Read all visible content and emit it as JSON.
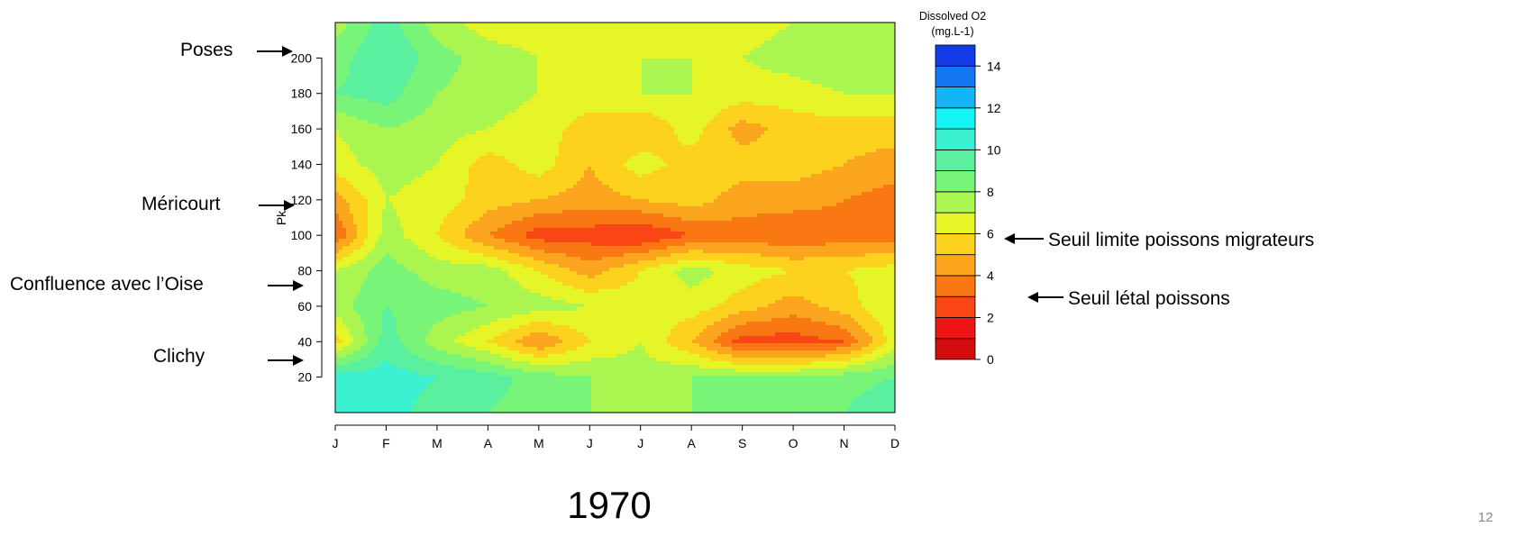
{
  "slide": {
    "year": "1970",
    "page_number": "12"
  },
  "annotations": {
    "left": [
      {
        "label": "Poses",
        "pk": 200
      },
      {
        "label": "Méricourt",
        "pk": 119
      },
      {
        "label": "Confluence avec l’Oise",
        "pk": 78
      },
      {
        "label": "Clichy",
        "pk": 38
      }
    ],
    "right": [
      {
        "label": "Seuil limite poissons migrateurs",
        "value": 6
      },
      {
        "label": "Seuil létal poissons",
        "value": 3
      }
    ]
  },
  "chart_data": {
    "type": "heatmap",
    "title": "",
    "xlabel": "",
    "ylabel": "Pk",
    "x": [
      "J",
      "F",
      "M",
      "A",
      "M",
      "J",
      "J",
      "A",
      "S",
      "O",
      "N",
      "D"
    ],
    "y": [
      0,
      20,
      40,
      60,
      80,
      100,
      120,
      140,
      160,
      180,
      200,
      220
    ],
    "yticks": [
      20,
      40,
      60,
      80,
      100,
      120,
      140,
      160,
      180,
      200
    ],
    "xlim": [
      "J",
      "D"
    ],
    "ylim": [
      0,
      220
    ],
    "z": [
      [
        10.0,
        10.5,
        9.5,
        9.0,
        8.5,
        8.0,
        8.0,
        8.0,
        8.5,
        9.0,
        9.0,
        10.0
      ],
      [
        10.5,
        10.5,
        10.0,
        9.5,
        8.5,
        8.0,
        7.5,
        8.0,
        8.0,
        8.0,
        8.5,
        9.0
      ],
      [
        5.5,
        9.5,
        7.5,
        6.0,
        4.0,
        6.0,
        7.0,
        5.0,
        2.5,
        2.5,
        3.0,
        6.5
      ],
      [
        7.5,
        9.0,
        8.5,
        8.0,
        7.5,
        7.0,
        6.5,
        6.5,
        5.5,
        4.5,
        5.5,
        7.0
      ],
      [
        7.0,
        8.5,
        7.5,
        7.5,
        6.0,
        4.5,
        6.0,
        7.5,
        6.5,
        6.0,
        6.0,
        6.5
      ],
      [
        3.0,
        7.5,
        6.0,
        4.0,
        2.5,
        2.5,
        2.0,
        3.0,
        3.5,
        3.0,
        3.5,
        3.5
      ],
      [
        4.5,
        7.0,
        6.5,
        5.5,
        5.0,
        4.5,
        5.0,
        5.5,
        4.5,
        4.5,
        4.0,
        3.5
      ],
      [
        6.5,
        7.5,
        7.0,
        5.5,
        6.5,
        5.0,
        6.5,
        5.5,
        5.5,
        5.5,
        5.0,
        4.5
      ],
      [
        7.0,
        8.0,
        7.5,
        7.0,
        6.5,
        5.5,
        5.0,
        6.5,
        4.5,
        5.5,
        5.5,
        5.5
      ],
      [
        9.0,
        9.5,
        8.0,
        7.5,
        7.0,
        6.5,
        7.0,
        7.0,
        6.5,
        6.5,
        7.0,
        7.0
      ],
      [
        8.5,
        10.0,
        8.5,
        7.5,
        7.0,
        7.0,
        7.0,
        7.0,
        7.0,
        7.5,
        8.0,
        8.0
      ],
      [
        7.5,
        9.5,
        7.5,
        6.5,
        6.5,
        6.0,
        6.5,
        7.0,
        6.5,
        7.0,
        7.5,
        7.5
      ]
    ],
    "colorbar": {
      "title": "Dissolved O2",
      "unit": "(mg.L-1)",
      "levels": [
        0,
        1,
        2,
        3,
        4,
        5,
        6,
        7,
        8,
        9,
        10,
        11,
        12,
        13,
        14,
        15
      ],
      "ticks": [
        0,
        2,
        4,
        6,
        8,
        10,
        12,
        14
      ],
      "colors": [
        "#d20c0c",
        "#f01414",
        "#fa4614",
        "#fa7814",
        "#fca51e",
        "#fcd21e",
        "#e6f528",
        "#aaf550",
        "#78f578",
        "#5af0a0",
        "#3cf0d2",
        "#14f5f5",
        "#14b4f5",
        "#1478f5",
        "#143ce6"
      ]
    }
  }
}
